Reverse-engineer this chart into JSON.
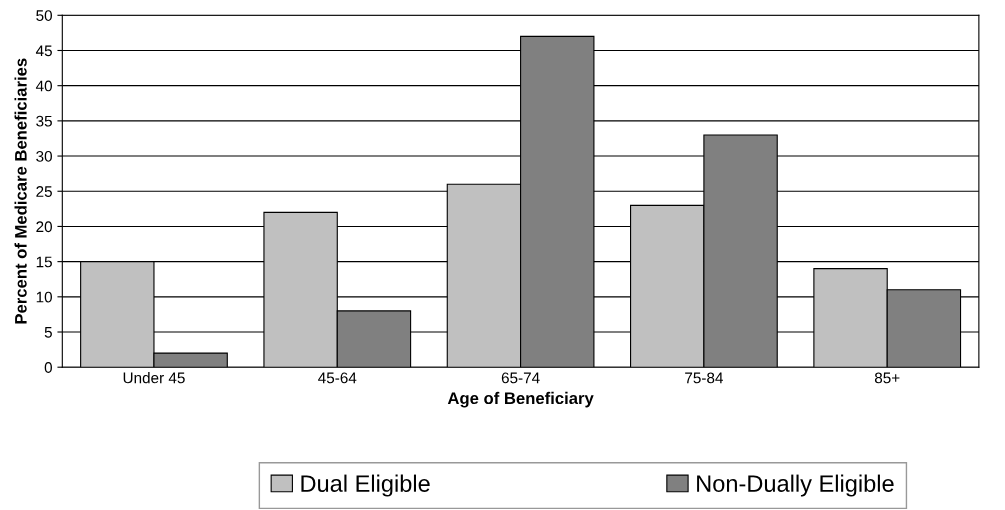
{
  "chart_data": {
    "type": "bar",
    "xlabel": "Age of Beneficiary",
    "ylabel": "Percent of Medicare Beneficiaries",
    "categories": [
      "Under 45",
      "45-64",
      "65-74",
      "75-84",
      "85+"
    ],
    "series": [
      {
        "name": "Dual Eligible",
        "color": "#c0c0c0",
        "values": [
          15,
          22,
          26,
          23,
          14
        ]
      },
      {
        "name": "Non-Dually Eligible",
        "color": "#808080",
        "values": [
          2,
          8,
          47,
          33,
          11
        ]
      }
    ],
    "ylim": [
      0,
      50
    ],
    "yticks": [
      0,
      5,
      10,
      15,
      20,
      25,
      30,
      35,
      40,
      45,
      50
    ],
    "grid": "y",
    "legend": "bottom"
  }
}
